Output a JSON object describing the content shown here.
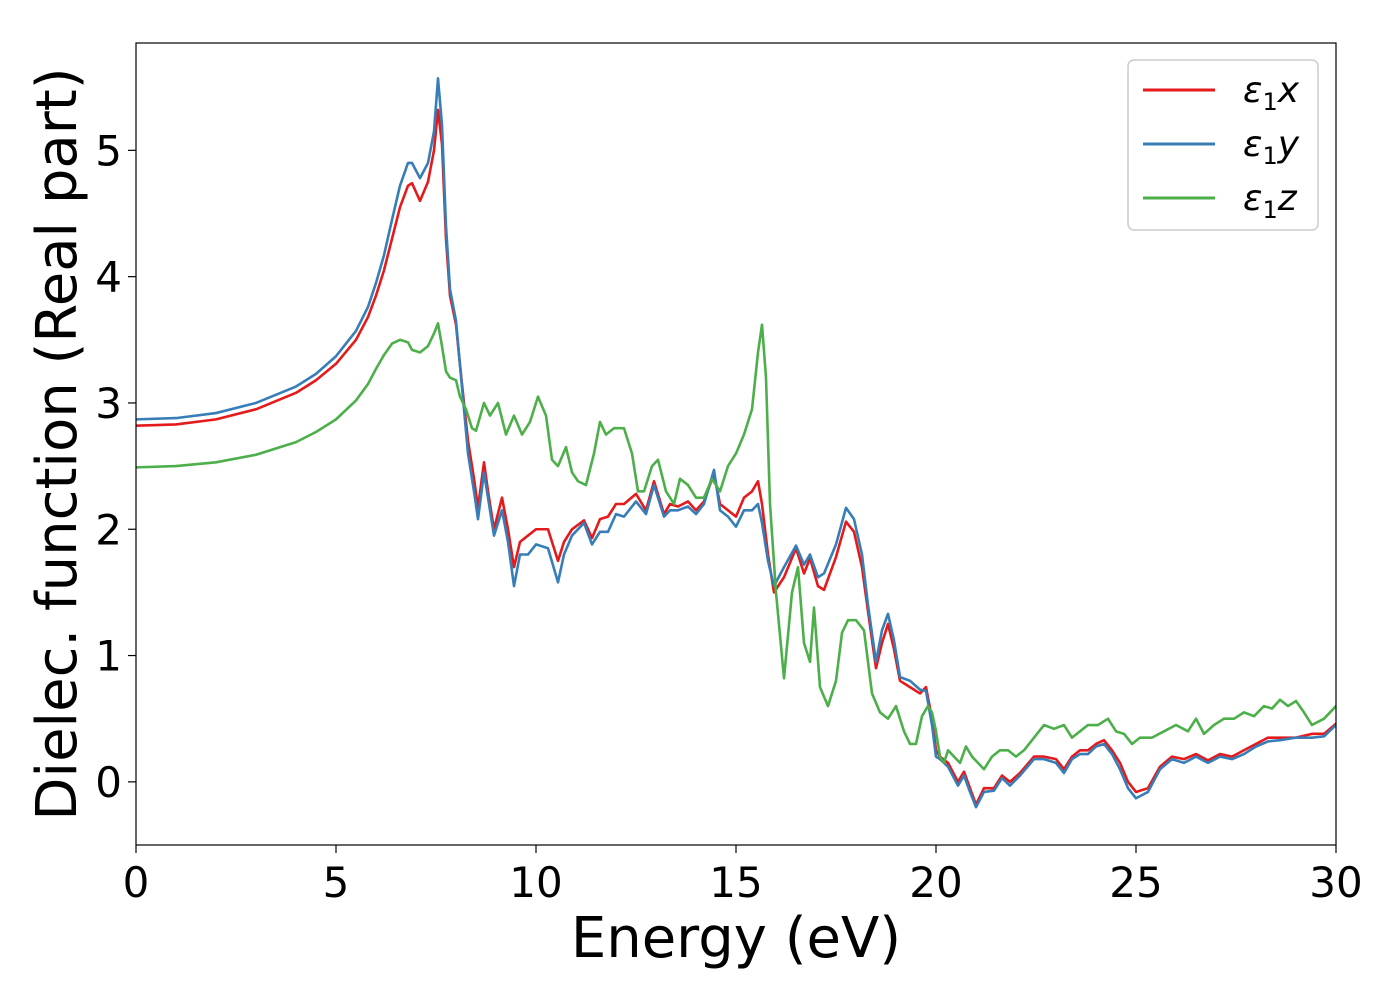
{
  "chart_data": {
    "type": "line",
    "title": "",
    "xlabel": "Energy (eV)",
    "ylabel": "Dielec. function (Real part)",
    "xlim": [
      0,
      30
    ],
    "ylim": [
      -0.5,
      5.85
    ],
    "xticks": [
      0,
      5,
      10,
      15,
      20,
      25,
      30
    ],
    "yticks": [
      0,
      1,
      2,
      3,
      4,
      5
    ],
    "grid": false,
    "legend_position": "top-right",
    "series": [
      {
        "name": "ε₁x",
        "legend_base": "ε",
        "legend_sub": "1",
        "legend_var": "x",
        "color": "#e41a1c",
        "x": [
          0,
          1,
          2,
          3,
          4,
          4.5,
          5,
          5.5,
          5.8,
          6.0,
          6.2,
          6.4,
          6.6,
          6.8,
          6.9,
          7.1,
          7.3,
          7.45,
          7.55,
          7.65,
          7.75,
          7.85,
          8.0,
          8.1,
          8.2,
          8.3,
          8.45,
          8.55,
          8.7,
          8.8,
          8.95,
          9.15,
          9.3,
          9.45,
          9.6,
          9.8,
          10.0,
          10.3,
          10.55,
          10.7,
          10.9,
          11.2,
          11.4,
          11.6,
          11.8,
          12.0,
          12.2,
          12.5,
          12.75,
          12.95,
          13.2,
          13.35,
          13.55,
          13.8,
          14.0,
          14.2,
          14.45,
          14.6,
          14.8,
          15.0,
          15.2,
          15.4,
          15.55,
          15.65,
          15.8,
          15.95,
          16.2,
          16.5,
          16.7,
          16.85,
          17.05,
          17.2,
          17.5,
          17.75,
          17.95,
          18.15,
          18.3,
          18.5,
          18.65,
          18.8,
          18.95,
          19.1,
          19.35,
          19.6,
          19.75,
          19.9,
          20.0,
          20.1,
          20.3,
          20.55,
          20.7,
          20.85,
          21.0,
          21.2,
          21.45,
          21.65,
          21.85,
          22.1,
          22.45,
          22.7,
          23.0,
          23.2,
          23.4,
          23.6,
          23.8,
          24.0,
          24.2,
          24.4,
          24.6,
          24.8,
          25.0,
          25.3,
          25.6,
          25.9,
          26.2,
          26.5,
          26.8,
          27.1,
          27.4,
          27.7,
          28.0,
          28.3,
          28.6,
          29.0,
          29.4,
          29.7,
          30.0
        ],
        "y": [
          2.82,
          2.83,
          2.87,
          2.95,
          3.08,
          3.18,
          3.31,
          3.5,
          3.68,
          3.85,
          4.05,
          4.3,
          4.55,
          4.72,
          4.74,
          4.6,
          4.75,
          5.0,
          5.32,
          5.05,
          4.3,
          3.85,
          3.62,
          3.3,
          3.0,
          2.7,
          2.4,
          2.17,
          2.53,
          2.3,
          2.0,
          2.25,
          2.0,
          1.7,
          1.9,
          1.95,
          2.0,
          2.0,
          1.75,
          1.9,
          2.0,
          2.07,
          1.93,
          2.08,
          2.1,
          2.2,
          2.2,
          2.28,
          2.15,
          2.38,
          2.12,
          2.2,
          2.18,
          2.22,
          2.15,
          2.22,
          2.44,
          2.2,
          2.15,
          2.1,
          2.25,
          2.3,
          2.38,
          2.2,
          1.8,
          1.5,
          1.62,
          1.85,
          1.65,
          1.77,
          1.55,
          1.52,
          1.78,
          2.06,
          1.98,
          1.7,
          1.35,
          0.9,
          1.1,
          1.25,
          1.05,
          0.8,
          0.75,
          0.7,
          0.75,
          0.5,
          0.25,
          0.2,
          0.15,
          0.0,
          0.08,
          -0.05,
          -0.18,
          -0.05,
          -0.05,
          0.05,
          0.0,
          0.07,
          0.2,
          0.2,
          0.18,
          0.1,
          0.2,
          0.25,
          0.25,
          0.3,
          0.33,
          0.25,
          0.15,
          0.0,
          -0.08,
          -0.05,
          0.12,
          0.2,
          0.18,
          0.22,
          0.17,
          0.22,
          0.2,
          0.25,
          0.3,
          0.35,
          0.35,
          0.35,
          0.38,
          0.38,
          0.46
        ]
      },
      {
        "name": "ε₁y",
        "legend_base": "ε",
        "legend_sub": "1",
        "legend_var": "y",
        "color": "#377eb8",
        "x": [
          0,
          1,
          2,
          3,
          4,
          4.5,
          5,
          5.5,
          5.8,
          6.0,
          6.2,
          6.4,
          6.6,
          6.8,
          6.9,
          7.1,
          7.3,
          7.45,
          7.55,
          7.65,
          7.75,
          7.85,
          8.0,
          8.1,
          8.2,
          8.3,
          8.45,
          8.55,
          8.7,
          8.8,
          8.95,
          9.15,
          9.3,
          9.45,
          9.6,
          9.8,
          10.0,
          10.3,
          10.55,
          10.7,
          10.9,
          11.2,
          11.4,
          11.6,
          11.8,
          12.0,
          12.2,
          12.5,
          12.75,
          12.95,
          13.2,
          13.35,
          13.55,
          13.8,
          14.0,
          14.2,
          14.45,
          14.6,
          14.8,
          15.0,
          15.2,
          15.4,
          15.55,
          15.65,
          15.8,
          15.95,
          16.2,
          16.5,
          16.7,
          16.85,
          17.05,
          17.2,
          17.5,
          17.75,
          17.95,
          18.15,
          18.3,
          18.5,
          18.65,
          18.8,
          18.95,
          19.1,
          19.35,
          19.6,
          19.75,
          19.9,
          20.0,
          20.1,
          20.3,
          20.55,
          20.7,
          20.85,
          21.0,
          21.2,
          21.45,
          21.65,
          21.85,
          22.1,
          22.45,
          22.7,
          23.0,
          23.2,
          23.4,
          23.6,
          23.8,
          24.0,
          24.2,
          24.4,
          24.6,
          24.8,
          25.0,
          25.3,
          25.6,
          25.9,
          26.2,
          26.5,
          26.8,
          27.1,
          27.4,
          27.7,
          28.0,
          28.3,
          28.6,
          29.0,
          29.4,
          29.7,
          30.0
        ],
        "y": [
          2.87,
          2.88,
          2.92,
          3.0,
          3.13,
          3.23,
          3.37,
          3.57,
          3.76,
          3.95,
          4.17,
          4.45,
          4.72,
          4.9,
          4.9,
          4.78,
          4.9,
          5.15,
          5.57,
          5.2,
          4.4,
          3.9,
          3.65,
          3.3,
          2.95,
          2.6,
          2.3,
          2.08,
          2.45,
          2.25,
          1.95,
          2.15,
          1.9,
          1.55,
          1.8,
          1.8,
          1.88,
          1.85,
          1.58,
          1.8,
          1.95,
          2.05,
          1.88,
          1.98,
          1.98,
          2.12,
          2.1,
          2.22,
          2.12,
          2.35,
          2.1,
          2.15,
          2.15,
          2.18,
          2.12,
          2.2,
          2.47,
          2.15,
          2.1,
          2.02,
          2.15,
          2.15,
          2.2,
          2.05,
          1.75,
          1.55,
          1.7,
          1.87,
          1.72,
          1.8,
          1.62,
          1.65,
          1.88,
          2.17,
          2.08,
          1.8,
          1.4,
          0.95,
          1.2,
          1.33,
          1.12,
          0.83,
          0.8,
          0.73,
          0.72,
          0.45,
          0.2,
          0.18,
          0.12,
          -0.03,
          0.05,
          -0.08,
          -0.2,
          -0.08,
          -0.07,
          0.03,
          -0.03,
          0.05,
          0.18,
          0.18,
          0.15,
          0.07,
          0.18,
          0.22,
          0.22,
          0.28,
          0.3,
          0.22,
          0.1,
          -0.05,
          -0.13,
          -0.08,
          0.1,
          0.18,
          0.15,
          0.2,
          0.15,
          0.2,
          0.18,
          0.22,
          0.28,
          0.32,
          0.33,
          0.35,
          0.35,
          0.36,
          0.45
        ]
      },
      {
        "name": "ε₁z",
        "legend_base": "ε",
        "legend_sub": "1",
        "legend_var": "z",
        "color": "#4daf4a",
        "x": [
          0,
          1,
          2,
          3,
          4,
          4.5,
          5,
          5.5,
          5.8,
          6.0,
          6.2,
          6.4,
          6.6,
          6.8,
          6.9,
          7.1,
          7.3,
          7.45,
          7.55,
          7.65,
          7.75,
          7.85,
          8.0,
          8.1,
          8.25,
          8.4,
          8.5,
          8.7,
          8.85,
          9.05,
          9.25,
          9.45,
          9.65,
          9.85,
          10.05,
          10.25,
          10.4,
          10.55,
          10.75,
          10.9,
          11.05,
          11.25,
          11.45,
          11.6,
          11.75,
          11.95,
          12.2,
          12.4,
          12.55,
          12.7,
          12.9,
          13.05,
          13.25,
          13.45,
          13.6,
          13.8,
          14.0,
          14.2,
          14.4,
          14.6,
          14.8,
          15.0,
          15.2,
          15.4,
          15.55,
          15.65,
          15.75,
          15.85,
          16.0,
          16.2,
          16.4,
          16.55,
          16.7,
          16.85,
          16.95,
          17.1,
          17.3,
          17.5,
          17.65,
          17.8,
          18.0,
          18.2,
          18.4,
          18.6,
          18.8,
          19.0,
          19.2,
          19.35,
          19.5,
          19.65,
          19.8,
          19.9,
          20.0,
          20.1,
          20.2,
          20.3,
          20.45,
          20.6,
          20.75,
          20.9,
          21.05,
          21.2,
          21.4,
          21.6,
          21.8,
          22.0,
          22.2,
          22.45,
          22.7,
          22.95,
          23.2,
          23.4,
          23.6,
          23.8,
          24.05,
          24.3,
          24.5,
          24.7,
          24.9,
          25.1,
          25.4,
          25.7,
          26.0,
          26.3,
          26.5,
          26.7,
          26.95,
          27.2,
          27.45,
          27.7,
          27.95,
          28.2,
          28.4,
          28.6,
          28.8,
          29.0,
          29.2,
          29.4,
          29.7,
          30.0
        ],
        "y": [
          2.49,
          2.5,
          2.53,
          2.59,
          2.69,
          2.77,
          2.87,
          3.02,
          3.15,
          3.27,
          3.38,
          3.47,
          3.5,
          3.48,
          3.42,
          3.4,
          3.45,
          3.55,
          3.63,
          3.45,
          3.25,
          3.2,
          3.18,
          3.05,
          2.95,
          2.8,
          2.78,
          3.0,
          2.9,
          3.0,
          2.75,
          2.9,
          2.75,
          2.85,
          3.05,
          2.9,
          2.55,
          2.5,
          2.65,
          2.45,
          2.38,
          2.35,
          2.6,
          2.85,
          2.75,
          2.8,
          2.8,
          2.6,
          2.3,
          2.3,
          2.5,
          2.55,
          2.3,
          2.2,
          2.4,
          2.35,
          2.25,
          2.25,
          2.4,
          2.3,
          2.5,
          2.6,
          2.75,
          2.95,
          3.4,
          3.62,
          3.2,
          2.2,
          1.5,
          0.82,
          1.5,
          1.7,
          1.1,
          0.95,
          1.38,
          0.75,
          0.6,
          0.8,
          1.18,
          1.28,
          1.28,
          1.2,
          0.7,
          0.55,
          0.5,
          0.6,
          0.4,
          0.3,
          0.3,
          0.52,
          0.6,
          0.55,
          0.4,
          0.2,
          0.15,
          0.25,
          0.2,
          0.15,
          0.28,
          0.2,
          0.15,
          0.1,
          0.2,
          0.25,
          0.25,
          0.2,
          0.25,
          0.35,
          0.45,
          0.42,
          0.45,
          0.35,
          0.4,
          0.45,
          0.45,
          0.5,
          0.4,
          0.38,
          0.3,
          0.35,
          0.35,
          0.4,
          0.45,
          0.4,
          0.5,
          0.38,
          0.45,
          0.5,
          0.5,
          0.55,
          0.52,
          0.6,
          0.58,
          0.65,
          0.6,
          0.64,
          0.55,
          0.45,
          0.5,
          0.6
        ]
      }
    ]
  }
}
